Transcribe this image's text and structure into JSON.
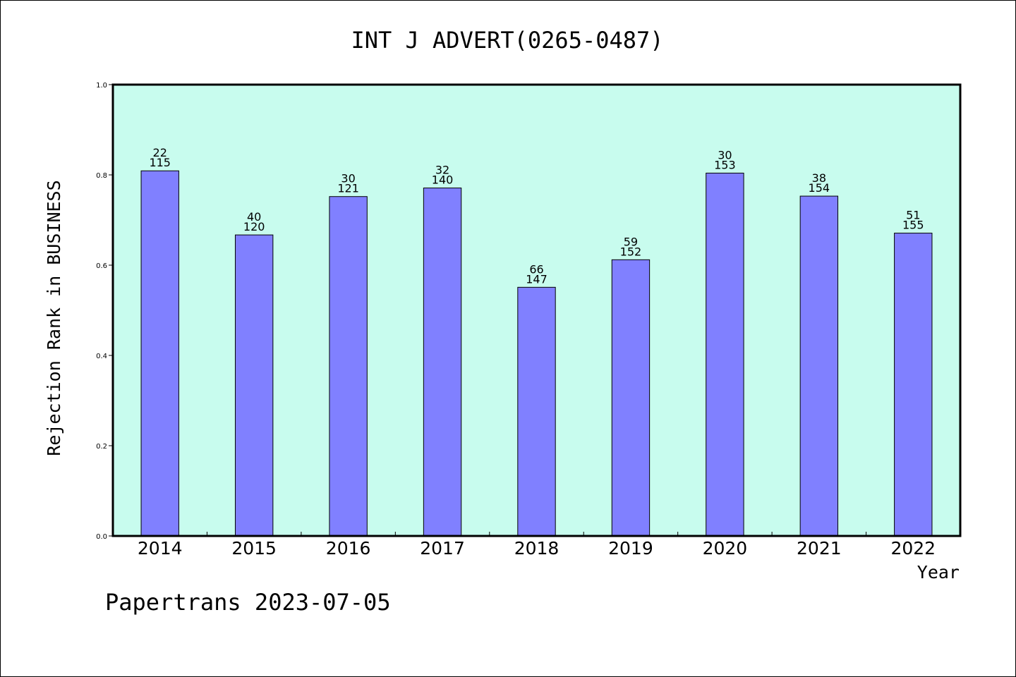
{
  "chart_data": {
    "type": "bar",
    "title": "INT J ADVERT(0265-0487)",
    "xlabel": "Year",
    "ylabel": "Rejection Rank in BUSINESS",
    "ylim": [
      0,
      1.0
    ],
    "yticks": [
      "0.0",
      "0.2",
      "0.4",
      "0.6",
      "0.8",
      "1.0"
    ],
    "grid": false,
    "categories": [
      "2014",
      "2015",
      "2016",
      "2017",
      "2018",
      "2019",
      "2020",
      "2021",
      "2022"
    ],
    "values": [
      0.809,
      0.667,
      0.752,
      0.771,
      0.551,
      0.612,
      0.804,
      0.753,
      0.671
    ],
    "rank": [
      "22",
      "40",
      "30",
      "32",
      "66",
      "59",
      "30",
      "38",
      "51"
    ],
    "total": [
      "115",
      "120",
      "121",
      "140",
      "147",
      "152",
      "153",
      "154",
      "155"
    ],
    "colors": {
      "plot_background": "#c8fcee",
      "bar": "#8080ff",
      "bar_edge": "#000000"
    }
  },
  "footer": {
    "text": "Papertrans 2023-07-05"
  }
}
